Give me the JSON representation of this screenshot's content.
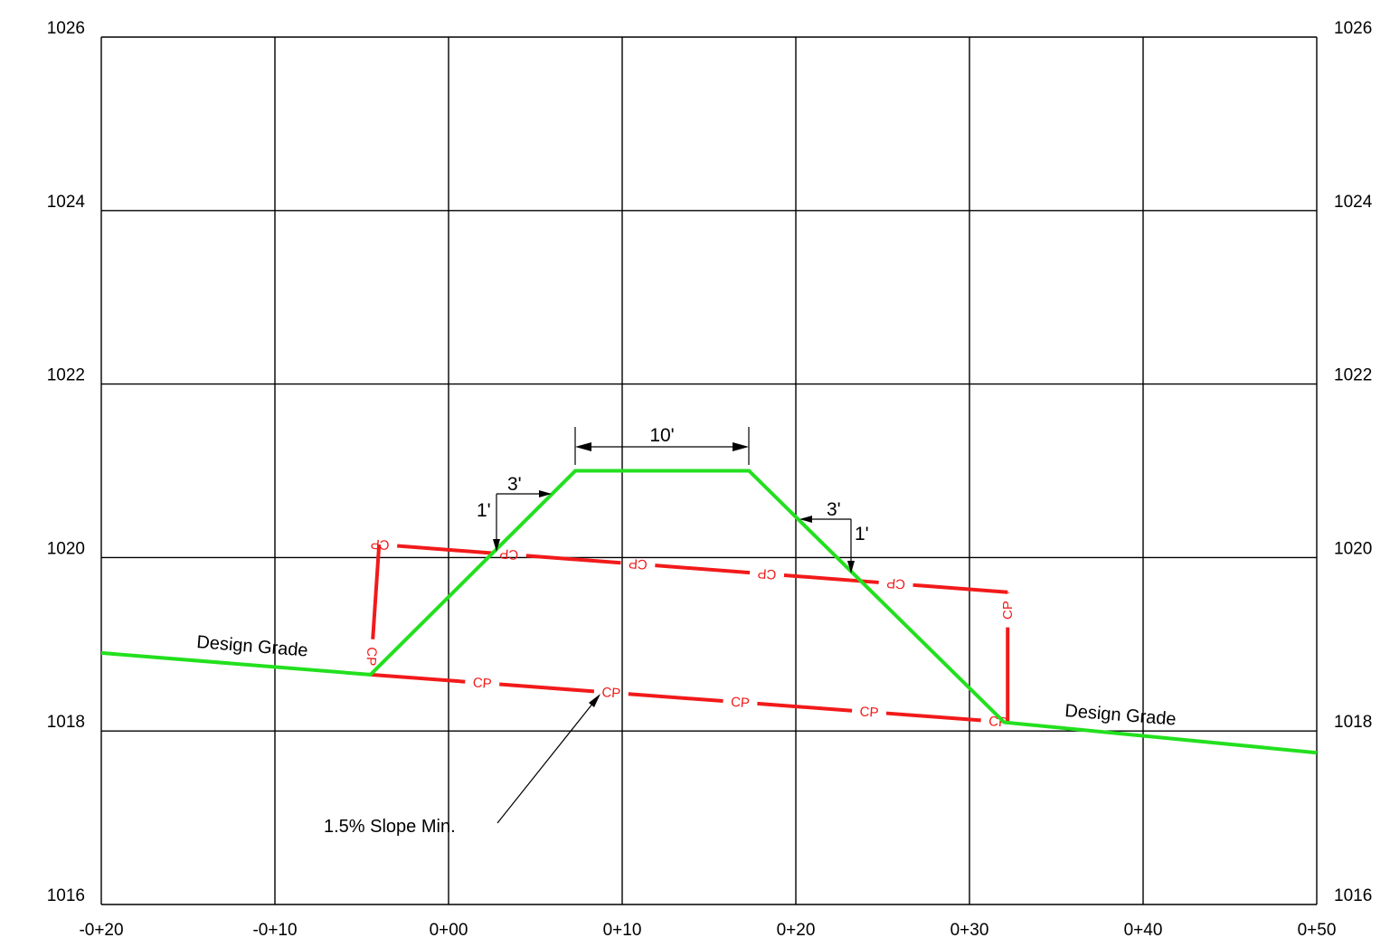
{
  "elevation_labels": [
    "1026",
    "1024",
    "1022",
    "1020",
    "1018",
    "1016"
  ],
  "station_labels": [
    "-0+20",
    "-0+10",
    "0+00",
    "0+10",
    "0+20",
    "0+30",
    "0+40",
    "0+50"
  ],
  "annotations": {
    "design_grade_left": "Design Grade",
    "design_grade_right": "Design Grade",
    "slope_note": "1.5% Slope Min.",
    "top_width": "10'",
    "left_run": "3'",
    "left_rise": "1'",
    "right_run": "3'",
    "right_rise": "1'",
    "control_point": "CP"
  },
  "colors": {
    "design_grade": "#22e01e",
    "control_point_line": "#f21a1a",
    "grid": "#000000"
  },
  "chart_data": {
    "type": "line",
    "x_axis": {
      "range": [
        -20,
        50
      ],
      "tick_labels": [
        "-0+20",
        "-0+10",
        "0+00",
        "0+10",
        "0+20",
        "0+30",
        "0+40",
        "0+50"
      ]
    },
    "y_axis": {
      "range": [
        1016,
        1026
      ],
      "tick_labels": [
        "1016",
        "1018",
        "1020",
        "1022",
        "1024",
        "1026"
      ]
    },
    "grid": true,
    "series": [
      {
        "name": "Design Grade",
        "color": "#22e01e",
        "x": [
          -20,
          -4.5,
          7.3,
          17.3,
          32.0,
          50.0
        ],
        "y": [
          1018.9,
          1018.65,
          1021.0,
          1021.0,
          1018.1,
          1017.75
        ]
      },
      {
        "name": "CP",
        "color": "#f21a1a",
        "polygon": true,
        "x": [
          -4.5,
          32.2,
          32.2,
          -4.0,
          -4.5
        ],
        "y": [
          1018.65,
          1018.1,
          1019.6,
          1020.15,
          1018.65
        ]
      }
    ]
  }
}
